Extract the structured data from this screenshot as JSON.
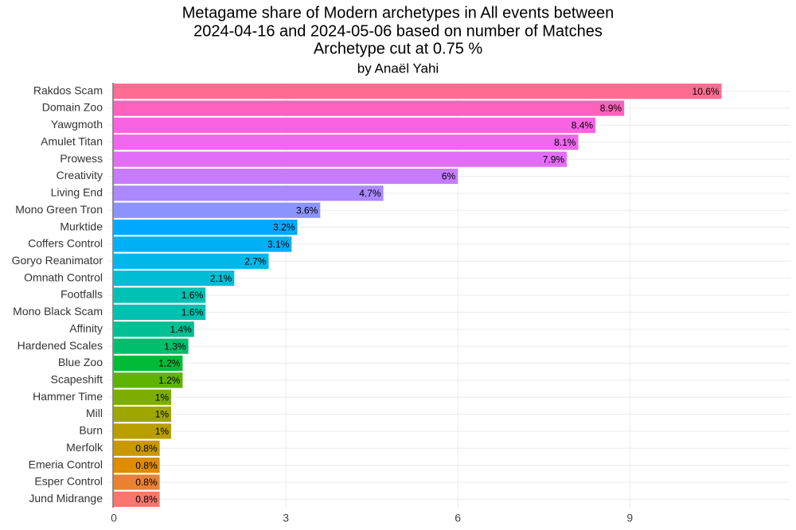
{
  "chart_data": {
    "type": "bar",
    "orientation": "horizontal",
    "title": [
      "Metagame share of Modern archetypes in All events between",
      "2024-04-16 and 2024-05-06 based on number of Matches",
      "Archetype cut at 0.75 %"
    ],
    "subtitle": "by Anaël Yahi",
    "categories": [
      "Rakdos Scam",
      "Domain Zoo",
      "Yawgmoth",
      "Amulet Titan",
      "Prowess",
      "Creativity",
      "Living End",
      "Mono Green Tron",
      "Murktide",
      "Coffers Control",
      "Goryo Reanimator",
      "Omnath Control",
      "Footfalls",
      "Mono Black Scam",
      "Affinity",
      "Hardened Scales",
      "Blue Zoo",
      "Scapeshift",
      "Hammer Time",
      "Mill",
      "Burn",
      "Merfolk",
      "Emeria Control",
      "Esper Control",
      "Jund Midrange"
    ],
    "values": [
      10.6,
      8.9,
      8.4,
      8.1,
      7.9,
      6,
      4.7,
      3.6,
      3.2,
      3.1,
      2.7,
      2.1,
      1.6,
      1.6,
      1.4,
      1.3,
      1.2,
      1.2,
      1,
      1,
      1,
      0.8,
      0.8,
      0.8,
      0.8
    ],
    "value_labels": [
      "10.6%",
      "8.9%",
      "8.4%",
      "8.1%",
      "7.9%",
      "6%",
      "4.7%",
      "3.6%",
      "3.2%",
      "3.1%",
      "2.7%",
      "2.1%",
      "1.6%",
      "1.6%",
      "1.4%",
      "1.3%",
      "1.2%",
      "1.2%",
      "1%",
      "1%",
      "1%",
      "0.8%",
      "0.8%",
      "0.8%",
      "0.8%"
    ],
    "colors": [
      "#FF6C92",
      "#FF62BC",
      "#F763E0",
      "#ED68ED",
      "#E26EF7",
      "#C77CFF",
      "#AC88FF",
      "#8B93FF",
      "#00A9FF",
      "#00B0F6",
      "#00B8E7",
      "#00BDD4",
      "#00C1B2",
      "#00C0AF",
      "#00C094",
      "#00BE6C",
      "#00BA38",
      "#5EB300",
      "#7CAE00",
      "#9DA700",
      "#B79F00",
      "#C99800",
      "#DE8C00",
      "#EA8331",
      "#F8766D"
    ],
    "xlim": [
      0,
      11.8
    ],
    "xticks": [
      0,
      3,
      6,
      9
    ],
    "grid": true
  }
}
